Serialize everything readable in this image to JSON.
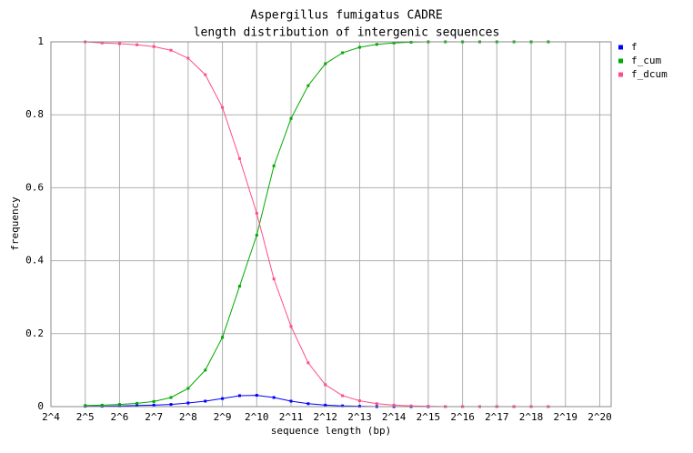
{
  "chart_data": {
    "type": "line",
    "title": "Aspergillus fumigatus CADRE",
    "subtitle": "length distribution of intergenic sequences",
    "x_label": "sequence length (bp)",
    "y_label": "frequency",
    "xscale": "log2",
    "grid": true,
    "legend": "upper right",
    "x": [
      32,
      45,
      64,
      91,
      128,
      181,
      256,
      362,
      512,
      724,
      1024,
      1448,
      2048,
      2896,
      4096,
      5793,
      8192,
      11585,
      16384,
      23170,
      32768,
      46341,
      65536,
      92682,
      131072,
      185364,
      262144,
      370728
    ],
    "series": [
      {
        "name": "f",
        "color": "#0000ff",
        "values": [
          0.001,
          0.001,
          0.002,
          0.003,
          0.004,
          0.006,
          0.01,
          0.015,
          0.022,
          0.03,
          0.031,
          0.025,
          0.015,
          0.008,
          0.004,
          0.002,
          0.001,
          0,
          0,
          0,
          0,
          0,
          0,
          0,
          0,
          0,
          0,
          0
        ]
      },
      {
        "name": "f_cum",
        "color": "#00aa00",
        "values": [
          0.003,
          0.004,
          0.006,
          0.009,
          0.014,
          0.025,
          0.05,
          0.1,
          0.19,
          0.33,
          0.47,
          0.66,
          0.79,
          0.88,
          0.94,
          0.97,
          0.985,
          0.993,
          0.997,
          0.999,
          1,
          1,
          1,
          1,
          1,
          1,
          1,
          1
        ]
      },
      {
        "name": "f_dcum",
        "color": "#ff4d88",
        "values": [
          1,
          0.997,
          0.995,
          0.992,
          0.987,
          0.977,
          0.955,
          0.91,
          0.82,
          0.68,
          0.53,
          0.35,
          0.22,
          0.12,
          0.06,
          0.03,
          0.016,
          0.008,
          0.004,
          0.002,
          0.001,
          0,
          0,
          0,
          0,
          0,
          0,
          0
        ]
      }
    ],
    "xlim": [
      16,
      1320000
    ],
    "xticks": [
      {
        "value": 16,
        "label": "2^4"
      },
      {
        "value": 32,
        "label": "2^5"
      },
      {
        "value": 64,
        "label": "2^6"
      },
      {
        "value": 128,
        "label": "2^7"
      },
      {
        "value": 256,
        "label": "2^8"
      },
      {
        "value": 512,
        "label": "2^9"
      },
      {
        "value": 1024,
        "label": "2^10"
      },
      {
        "value": 2048,
        "label": "2^11"
      },
      {
        "value": 4096,
        "label": "2^12"
      },
      {
        "value": 8192,
        "label": "2^13"
      },
      {
        "value": 16384,
        "label": "2^14"
      },
      {
        "value": 32768,
        "label": "2^15"
      },
      {
        "value": 65536,
        "label": "2^16"
      },
      {
        "value": 131072,
        "label": "2^17"
      },
      {
        "value": 262144,
        "label": "2^18"
      },
      {
        "value": 524288,
        "label": "2^19"
      },
      {
        "value": 1048576,
        "label": "2^20"
      }
    ],
    "ylim": [
      0,
      1
    ],
    "yticks": [
      0,
      0.2,
      0.4,
      0.6,
      0.8,
      1
    ]
  }
}
